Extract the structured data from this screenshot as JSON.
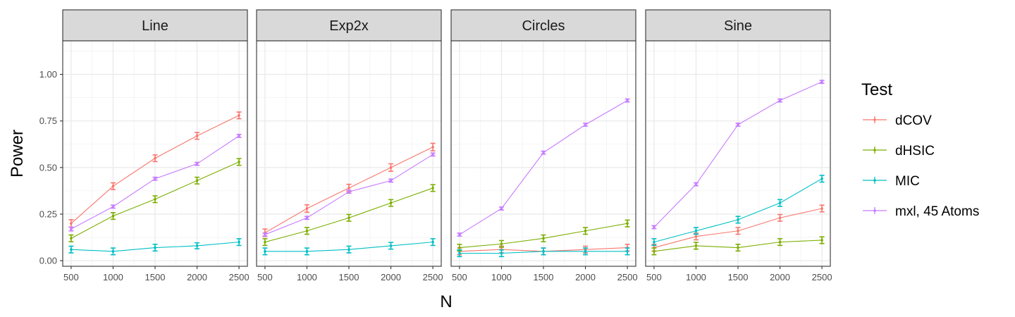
{
  "chart_data": {
    "type": "line",
    "xlabel": "N",
    "ylabel": "Power",
    "x": [
      500,
      1000,
      1500,
      2000,
      2500
    ],
    "ylim": [
      -0.03,
      1.18
    ],
    "y_ticks": [
      "0.00",
      "0.25",
      "0.50",
      "0.75",
      "1.00"
    ],
    "x_ticks": [
      "500",
      "1000",
      "1500",
      "2000",
      "2500"
    ],
    "grid": true,
    "legend": {
      "title": "Test",
      "position": "right",
      "entries": [
        {
          "name": "dCOV",
          "color": "#F8766D"
        },
        {
          "name": "dHSIC",
          "color": "#7CAE00"
        },
        {
          "name": "MIC",
          "color": "#00BFC4"
        },
        {
          "name": "mxl, 45 Atoms",
          "color": "#C77CFF"
        }
      ]
    },
    "panels": [
      {
        "title": "Line",
        "series": [
          {
            "name": "dCOV",
            "values": [
              0.2,
              0.4,
              0.55,
              0.67,
              0.78
            ],
            "err": [
              0.02,
              0.018,
              0.018,
              0.018,
              0.018
            ]
          },
          {
            "name": "dHSIC",
            "values": [
              0.12,
              0.24,
              0.33,
              0.43,
              0.53
            ],
            "err": [
              0.018,
              0.018,
              0.018,
              0.018,
              0.018
            ]
          },
          {
            "name": "MIC",
            "values": [
              0.06,
              0.05,
              0.07,
              0.08,
              0.1
            ],
            "err": [
              0.018,
              0.018,
              0.018,
              0.016,
              0.018
            ]
          },
          {
            "name": "mxl, 45 Atoms",
            "values": [
              0.17,
              0.29,
              0.44,
              0.52,
              0.67
            ],
            "err": [
              0.01,
              0.008,
              0.008,
              0.008,
              0.008
            ]
          }
        ]
      },
      {
        "title": "Exp2x",
        "series": [
          {
            "name": "dCOV",
            "values": [
              0.15,
              0.28,
              0.39,
              0.5,
              0.61
            ],
            "err": [
              0.02,
              0.02,
              0.02,
              0.02,
              0.02
            ]
          },
          {
            "name": "dHSIC",
            "values": [
              0.1,
              0.16,
              0.23,
              0.31,
              0.39
            ],
            "err": [
              0.018,
              0.018,
              0.018,
              0.018,
              0.018
            ]
          },
          {
            "name": "MIC",
            "values": [
              0.05,
              0.05,
              0.06,
              0.08,
              0.1
            ],
            "err": [
              0.018,
              0.018,
              0.018,
              0.018,
              0.018
            ]
          },
          {
            "name": "mxl, 45 Atoms",
            "values": [
              0.14,
              0.23,
              0.37,
              0.43,
              0.57
            ],
            "err": [
              0.008,
              0.008,
              0.008,
              0.008,
              0.008
            ]
          }
        ]
      },
      {
        "title": "Circles",
        "series": [
          {
            "name": "dCOV",
            "values": [
              0.05,
              0.06,
              0.05,
              0.06,
              0.07
            ],
            "err": [
              0.018,
              0.018,
              0.018,
              0.018,
              0.018
            ]
          },
          {
            "name": "dHSIC",
            "values": [
              0.07,
              0.09,
              0.12,
              0.16,
              0.2
            ],
            "err": [
              0.018,
              0.018,
              0.018,
              0.018,
              0.018
            ]
          },
          {
            "name": "MIC",
            "values": [
              0.04,
              0.04,
              0.05,
              0.05,
              0.05
            ],
            "err": [
              0.018,
              0.018,
              0.018,
              0.018,
              0.018
            ]
          },
          {
            "name": "mxl, 45 Atoms",
            "values": [
              0.14,
              0.28,
              0.58,
              0.73,
              0.86
            ],
            "err": [
              0.008,
              0.008,
              0.008,
              0.008,
              0.008
            ]
          }
        ]
      },
      {
        "title": "Sine",
        "series": [
          {
            "name": "dCOV",
            "values": [
              0.07,
              0.13,
              0.16,
              0.23,
              0.28
            ],
            "err": [
              0.018,
              0.018,
              0.018,
              0.018,
              0.018
            ]
          },
          {
            "name": "dHSIC",
            "values": [
              0.05,
              0.08,
              0.07,
              0.1,
              0.11
            ],
            "err": [
              0.018,
              0.018,
              0.018,
              0.018,
              0.018
            ]
          },
          {
            "name": "MIC",
            "values": [
              0.1,
              0.16,
              0.22,
              0.31,
              0.44
            ],
            "err": [
              0.018,
              0.018,
              0.018,
              0.018,
              0.018
            ]
          },
          {
            "name": "mxl, 45 Atoms",
            "values": [
              0.18,
              0.41,
              0.73,
              0.86,
              0.96
            ],
            "err": [
              0.008,
              0.008,
              0.008,
              0.008,
              0.008
            ]
          }
        ]
      }
    ]
  }
}
